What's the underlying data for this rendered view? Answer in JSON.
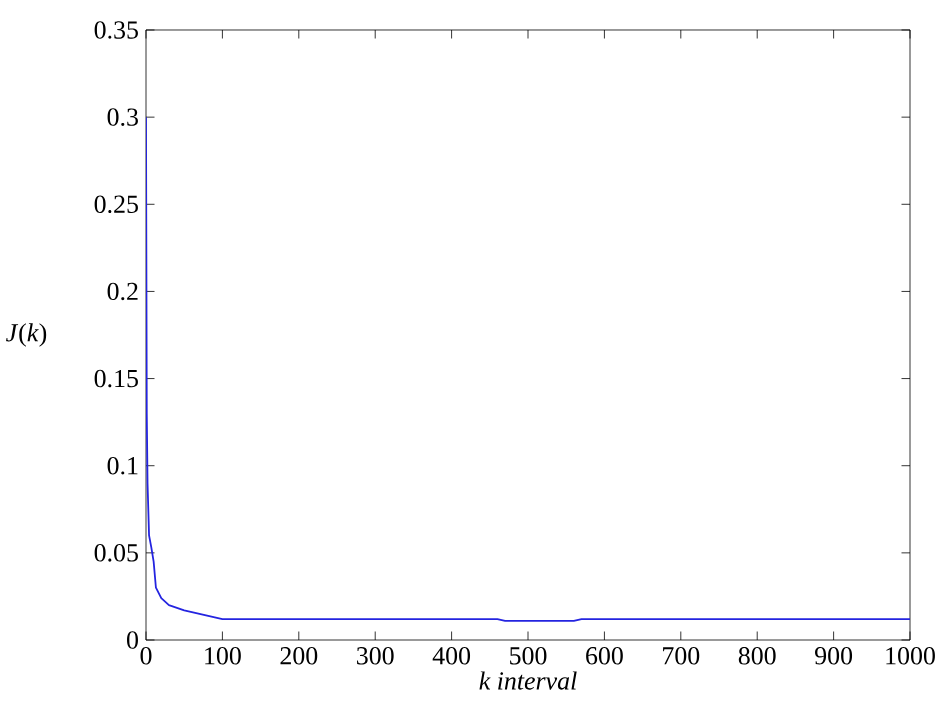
{
  "chart_data": {
    "type": "line",
    "xlabel": "k interval",
    "ylabel": "*J*(*k*)",
    "x": [
      0,
      1,
      2,
      4,
      7,
      10,
      13,
      20,
      30,
      50,
      70,
      90,
      100,
      200,
      460,
      470,
      560,
      570,
      1000
    ],
    "series": [
      {
        "color": "#2424e0",
        "values": [
          0.3,
          0.13,
          0.09,
          0.06,
          0.053,
          0.045,
          0.03,
          0.024,
          0.02,
          0.017,
          0.015,
          0.013,
          0.012,
          0.012,
          0.012,
          0.011,
          0.011,
          0.012,
          0.012
        ]
      }
    ],
    "xlim": [
      0,
      1000
    ],
    "ylim": [
      0,
      0.35
    ],
    "xticks": [
      0,
      100,
      200,
      300,
      400,
      500,
      600,
      700,
      800,
      900,
      1000
    ],
    "yticks": [
      0,
      0.05,
      0.1,
      0.15,
      0.2,
      0.25,
      0.3,
      0.35
    ],
    "grid": false,
    "marker": "none",
    "line_style": "solid"
  }
}
